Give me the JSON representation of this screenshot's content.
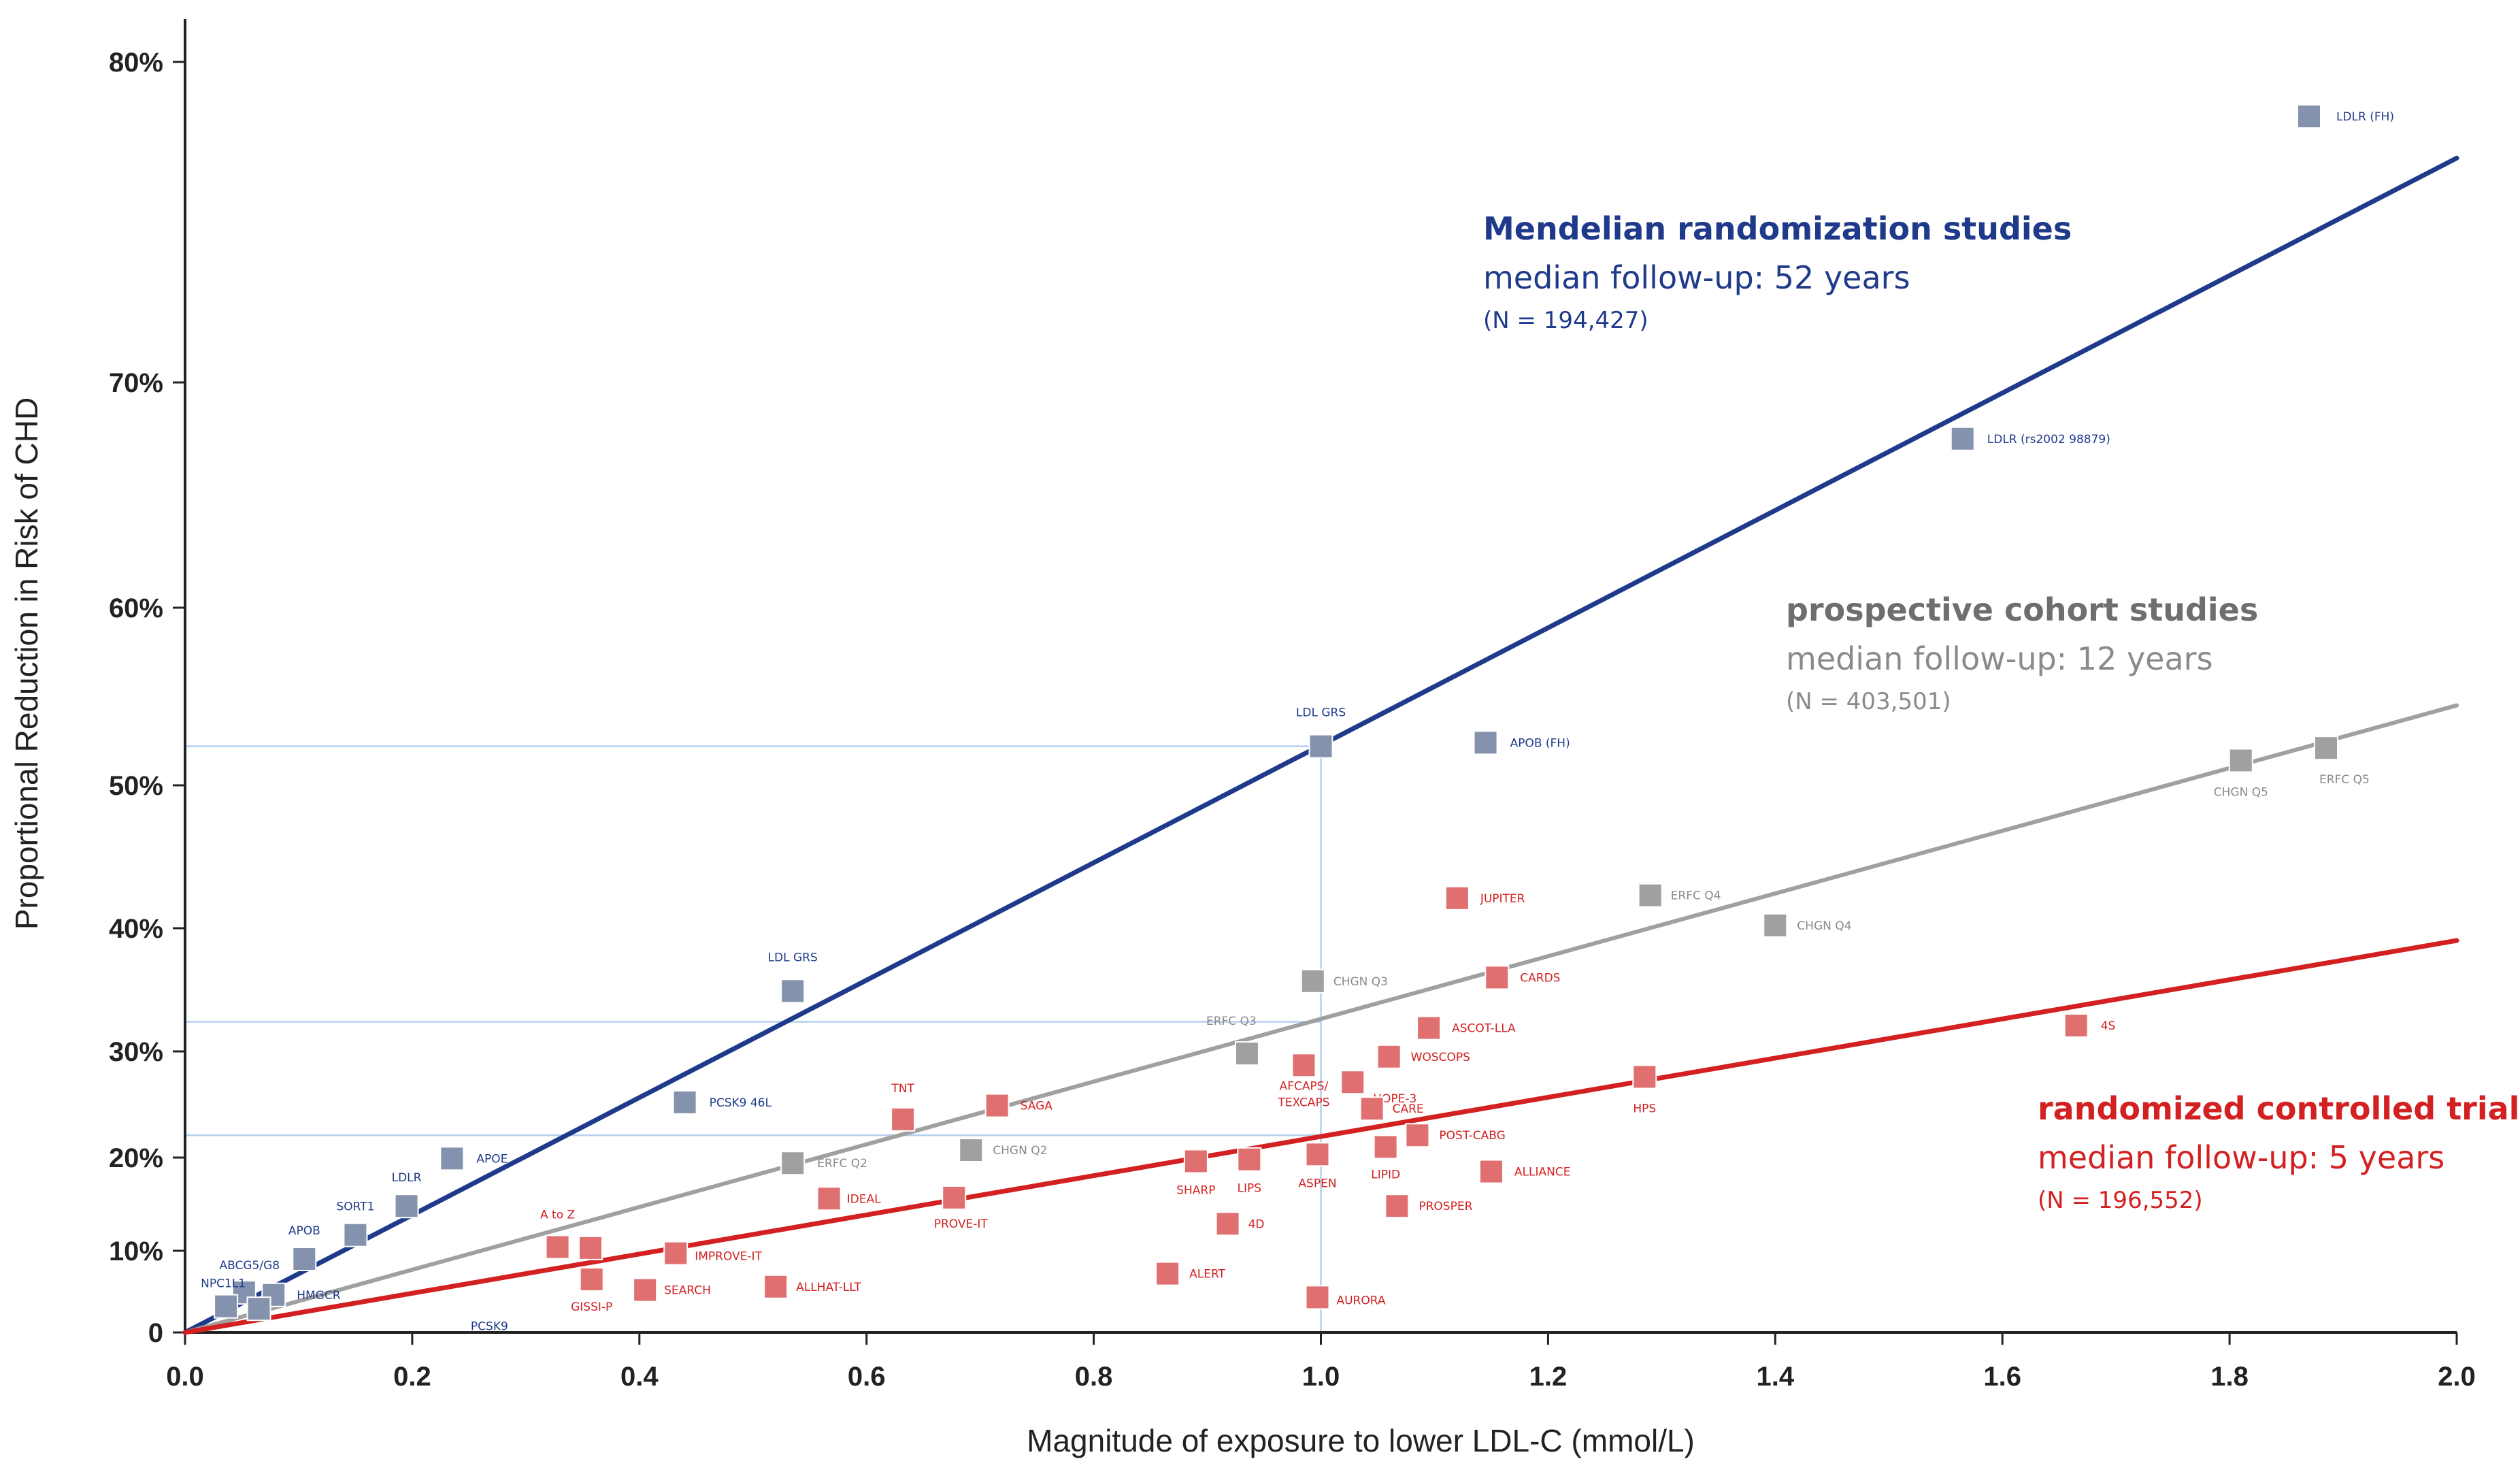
{
  "chart_data": {
    "type": "scatter",
    "title": "",
    "xlabel": "Magnitude of exposure to lower LDL-C (mmol/L)",
    "ylabel": "Proportional Reduction in Risk of CHD",
    "xlim": [
      0.0,
      2.0
    ],
    "x_ticks": [
      0.0,
      0.2,
      0.4,
      0.6,
      0.8,
      1.0,
      1.2,
      1.4,
      1.6,
      1.8,
      2.0
    ],
    "x_tick_labels": [
      "0.0",
      "0.2",
      "0.4",
      "0.6",
      "0.8",
      "1.0",
      "1.2",
      "1.4",
      "1.6",
      "1.8",
      "2.0"
    ],
    "y_ticks": [
      0,
      10,
      20,
      30,
      40,
      50,
      60,
      70,
      80
    ],
    "y_tick_labels": [
      "0",
      "10%",
      "20%",
      "30%",
      "40%",
      "50%",
      "60%",
      "70%",
      "80%"
    ],
    "lines": [
      {
        "name": "Mendelian randomization studies",
        "color": "#1f3a8a",
        "x": [
          0.0,
          2.0
        ],
        "y": [
          0,
          77
        ]
      },
      {
        "name": "prospective cohort studies",
        "color": "#a0a0a0",
        "x": [
          0.0,
          2.0
        ],
        "y": [
          0,
          54.5
        ]
      },
      {
        "name": "randomized controlled trials",
        "color": "#d32020",
        "x": [
          0.0,
          2.0
        ],
        "y": [
          0,
          39
        ]
      }
    ],
    "reference_lines": [
      {
        "x": 1.0,
        "y": 52.2
      },
      {
        "x": 1.0,
        "y": 32.4
      },
      {
        "x": 1.0,
        "y": 22.1
      }
    ],
    "series": [
      {
        "name": "Mendelian randomization studies",
        "marker_color": "#8492ad",
        "label_color": "#1f3a8a",
        "points": [
          {
            "label": "LDLR (FH)",
            "x": 1.87,
            "y": 78.3
          },
          {
            "label": "LDLR (rs2002 98879)",
            "x": 1.565,
            "y": 67.5
          },
          {
            "label": "LDL GRS",
            "x": 1.0,
            "y": 52.2
          },
          {
            "label": "APOB (FH)",
            "x": 1.145,
            "y": 52.4
          },
          {
            "label": "LDL GRS",
            "x": 0.535,
            "y": 34.9
          },
          {
            "label": "PCSK9 46L",
            "x": 0.44,
            "y": 25.2
          },
          {
            "label": "APOE",
            "x": 0.235,
            "y": 19.9
          },
          {
            "label": "LDLR",
            "x": 0.195,
            "y": 14.8
          },
          {
            "label": "SORT1",
            "x": 0.15,
            "y": 11.7
          },
          {
            "label": "APOB",
            "x": 0.105,
            "y": 9.0
          },
          {
            "label": "ABCG5/G8",
            "x": 0.052,
            "y": 4.9
          },
          {
            "label": "HMGCR",
            "x": 0.078,
            "y": 4.6
          },
          {
            "label": "NPC1L1",
            "x": 0.036,
            "y": 3.2
          },
          {
            "label": "",
            "x": 0.065,
            "y": 2.9
          }
        ]
      },
      {
        "name": "prospective cohort studies",
        "marker_color": "#a0a0a0",
        "label_color": "#8a8a8a",
        "points": [
          {
            "label": "ERFC Q5",
            "x": 1.885,
            "y": 52.1
          },
          {
            "label": "CHGN Q5",
            "x": 1.81,
            "y": 51.4
          },
          {
            "label": "ERFC Q4",
            "x": 1.29,
            "y": 42.3
          },
          {
            "label": "CHGN Q4",
            "x": 1.4,
            "y": 40.2
          },
          {
            "label": "CHGN Q3",
            "x": 0.993,
            "y": 35.7
          },
          {
            "label": "ERFC Q3",
            "x": 0.935,
            "y": 29.8
          },
          {
            "label": "CHGN Q2",
            "x": 0.692,
            "y": 20.7
          },
          {
            "label": "ERFC Q2",
            "x": 0.535,
            "y": 19.4
          }
        ]
      },
      {
        "name": "randomized controlled trials",
        "marker_color": "#e07070",
        "label_color": "#d32020",
        "points": [
          {
            "label": "JUPITER",
            "x": 1.12,
            "y": 42.1
          },
          {
            "label": "CARDS",
            "x": 1.155,
            "y": 36.0
          },
          {
            "label": "4S",
            "x": 1.665,
            "y": 32.1
          },
          {
            "label": "ASCOT-LLA",
            "x": 1.095,
            "y": 31.9
          },
          {
            "label": "WOSCOPS",
            "x": 1.06,
            "y": 29.5
          },
          {
            "label": "AFCAPS/ TEXCAPS",
            "x": 0.985,
            "y": 28.7
          },
          {
            "label": "HOPE-3",
            "x": 1.028,
            "y": 27.1
          },
          {
            "label": "HPS",
            "x": 1.285,
            "y": 27.6
          },
          {
            "label": "CARE",
            "x": 1.045,
            "y": 24.6
          },
          {
            "label": "POST-CABG",
            "x": 1.085,
            "y": 22.1
          },
          {
            "label": "TNT",
            "x": 0.632,
            "y": 23.6
          },
          {
            "label": "SAGA",
            "x": 0.715,
            "y": 24.9
          },
          {
            "label": "LIPID",
            "x": 1.057,
            "y": 21.0
          },
          {
            "label": "ASPEN",
            "x": 0.997,
            "y": 20.3
          },
          {
            "label": "LIPS",
            "x": 0.937,
            "y": 19.8
          },
          {
            "label": "SHARP",
            "x": 0.89,
            "y": 19.6
          },
          {
            "label": "ALLIANCE",
            "x": 1.15,
            "y": 18.5
          },
          {
            "label": "IDEAL",
            "x": 0.567,
            "y": 15.6
          },
          {
            "label": "PROVE-IT",
            "x": 0.677,
            "y": 15.7
          },
          {
            "label": "PROSPER",
            "x": 1.067,
            "y": 14.8
          },
          {
            "label": "4D",
            "x": 0.918,
            "y": 12.9
          },
          {
            "label": "A to Z",
            "x": 0.328,
            "y": 10.4
          },
          {
            "label": "",
            "x": 0.357,
            "y": 10.3
          },
          {
            "label": "IMPROVE-IT",
            "x": 0.432,
            "y": 9.7
          },
          {
            "label": "ALERT",
            "x": 0.865,
            "y": 7.2
          },
          {
            "label": "GISSI-P",
            "x": 0.358,
            "y": 6.5
          },
          {
            "label": "SEARCH",
            "x": 0.405,
            "y": 5.2
          },
          {
            "label": "ALLHAT-LLT",
            "x": 0.52,
            "y": 5.6
          },
          {
            "label": "AURORA",
            "x": 0.997,
            "y": 4.3
          }
        ]
      }
    ],
    "annotations": [
      {
        "series": "Mendelian randomization studies",
        "title": "Mendelian randomization studies",
        "followup": "median follow-up: 52 years",
        "n": "(N = 194,427)"
      },
      {
        "series": "prospective cohort studies",
        "title": "prospective cohort studies",
        "followup": "median follow-up: 12 years",
        "n": "(N = 403,501)"
      },
      {
        "series": "randomized controlled trials",
        "title": "randomized controlled trials",
        "followup": "median follow-up: 5 years",
        "n": "(N = 196,552)"
      }
    ],
    "isolated_labels": [
      {
        "label": "PCSK9",
        "x": 0.25,
        "y": 0.8
      }
    ]
  },
  "colors": {
    "mendelian": "#1f3a8a",
    "cohort": "#8a8a8a",
    "rct": "#d32020",
    "axis": "#222222",
    "reference": "#b3cfee"
  }
}
